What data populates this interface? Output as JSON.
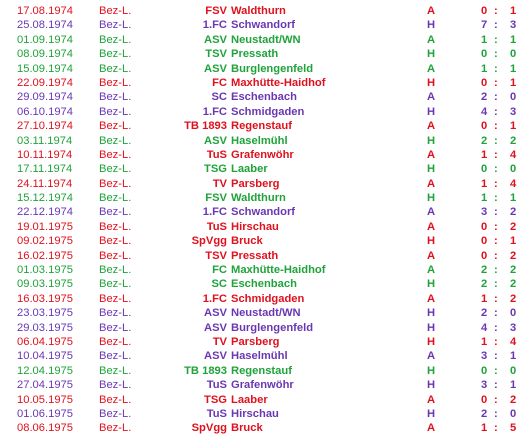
{
  "colors": {
    "win": "#1fa33a",
    "draw": "#6a37b3",
    "loss": "#e0111e"
  },
  "matches": [
    {
      "date": "17.08.1974",
      "league": "Bez-L.",
      "prefix": "FSV",
      "club": "Waldthurn",
      "venue": "A",
      "g1": "0",
      "g2": "1",
      "result": "loss"
    },
    {
      "date": "25.08.1974",
      "league": "Bez-L.",
      "prefix": "1.FC",
      "club": "Schwandorf",
      "venue": "H",
      "g1": "7",
      "g2": "3",
      "result": "draw"
    },
    {
      "date": "01.09.1974",
      "league": "Bez-L.",
      "prefix": "ASV",
      "club": "Neustadt/WN",
      "venue": "A",
      "g1": "1",
      "g2": "1",
      "result": "win"
    },
    {
      "date": "08.09.1974",
      "league": "Bez-L.",
      "prefix": "TSV",
      "club": "Pressath",
      "venue": "H",
      "g1": "0",
      "g2": "0",
      "result": "win"
    },
    {
      "date": "15.09.1974",
      "league": "Bez-L.",
      "prefix": "ASV",
      "club": "Burglengenfeld",
      "venue": "A",
      "g1": "1",
      "g2": "1",
      "result": "win"
    },
    {
      "date": "22.09.1974",
      "league": "Bez-L.",
      "prefix": "FC",
      "club": "Maxhütte-Haidhof",
      "venue": "H",
      "g1": "0",
      "g2": "1",
      "result": "loss"
    },
    {
      "date": "29.09.1974",
      "league": "Bez-L.",
      "prefix": "SC",
      "club": "Eschenbach",
      "venue": "A",
      "g1": "2",
      "g2": "0",
      "result": "draw"
    },
    {
      "date": "06.10.1974",
      "league": "Bez-L.",
      "prefix": "1.FC",
      "club": "Schmidgaden",
      "venue": "H",
      "g1": "4",
      "g2": "3",
      "result": "draw"
    },
    {
      "date": "27.10.1974",
      "league": "Bez-L.",
      "prefix": "TB 1893",
      "club": "Regenstauf",
      "venue": "A",
      "g1": "0",
      "g2": "1",
      "result": "loss"
    },
    {
      "date": "03.11.1974",
      "league": "Bez-L.",
      "prefix": "ASV",
      "club": "Haselmühl",
      "venue": "H",
      "g1": "2",
      "g2": "2",
      "result": "win"
    },
    {
      "date": "10.11.1974",
      "league": "Bez-L.",
      "prefix": "TuS",
      "club": "Grafenwöhr",
      "venue": "A",
      "g1": "1",
      "g2": "4",
      "result": "loss"
    },
    {
      "date": "17.11.1974",
      "league": "Bez-L.",
      "prefix": "TSG",
      "club": "Laaber",
      "venue": "H",
      "g1": "0",
      "g2": "0",
      "result": "win"
    },
    {
      "date": "24.11.1974",
      "league": "Bez-L.",
      "prefix": "TV",
      "club": "Parsberg",
      "venue": "A",
      "g1": "1",
      "g2": "4",
      "result": "loss"
    },
    {
      "date": "15.12.1974",
      "league": "Bez-L.",
      "prefix": "FSV",
      "club": "Waldthurn",
      "venue": "H",
      "g1": "1",
      "g2": "1",
      "result": "win"
    },
    {
      "date": "22.12.1974",
      "league": "Bez-L.",
      "prefix": "1.FC",
      "club": "Schwandorf",
      "venue": "A",
      "g1": "3",
      "g2": "2",
      "result": "draw"
    },
    {
      "date": "19.01.1975",
      "league": "Bez-L.",
      "prefix": "TuS",
      "club": "Hirschau",
      "venue": "A",
      "g1": "0",
      "g2": "2",
      "result": "loss"
    },
    {
      "date": "09.02.1975",
      "league": "Bez-L.",
      "prefix": "SpVgg",
      "club": "Bruck",
      "venue": "H",
      "g1": "0",
      "g2": "1",
      "result": "loss"
    },
    {
      "date": "16.02.1975",
      "league": "Bez-L.",
      "prefix": "TSV",
      "club": "Pressath",
      "venue": "A",
      "g1": "0",
      "g2": "2",
      "result": "loss"
    },
    {
      "date": "01.03.1975",
      "league": "Bez-L.",
      "prefix": "FC",
      "club": "Maxhütte-Haidhof",
      "venue": "A",
      "g1": "2",
      "g2": "2",
      "result": "win"
    },
    {
      "date": "09.03.1975",
      "league": "Bez-L.",
      "prefix": "SC",
      "club": "Eschenbach",
      "venue": "H",
      "g1": "2",
      "g2": "2",
      "result": "win"
    },
    {
      "date": "16.03.1975",
      "league": "Bez-L.",
      "prefix": "1.FC",
      "club": "Schmidgaden",
      "venue": "A",
      "g1": "1",
      "g2": "2",
      "result": "loss"
    },
    {
      "date": "23.03.1975",
      "league": "Bez-L.",
      "prefix": "ASV",
      "club": "Neustadt/WN",
      "venue": "H",
      "g1": "2",
      "g2": "0",
      "result": "draw"
    },
    {
      "date": "29.03.1975",
      "league": "Bez-L.",
      "prefix": "ASV",
      "club": "Burglengenfeld",
      "venue": "H",
      "g1": "4",
      "g2": "3",
      "result": "draw"
    },
    {
      "date": "06.04.1975",
      "league": "Bez-L.",
      "prefix": "TV",
      "club": "Parsberg",
      "venue": "H",
      "g1": "1",
      "g2": "4",
      "result": "loss"
    },
    {
      "date": "10.04.1975",
      "league": "Bez-L.",
      "prefix": "ASV",
      "club": "Haselmühl",
      "venue": "A",
      "g1": "3",
      "g2": "1",
      "result": "draw"
    },
    {
      "date": "12.04.1975",
      "league": "Bez-L.",
      "prefix": "TB 1893",
      "club": "Regenstauf",
      "venue": "H",
      "g1": "0",
      "g2": "0",
      "result": "win"
    },
    {
      "date": "27.04.1975",
      "league": "Bez-L.",
      "prefix": "TuS",
      "club": "Grafenwöhr",
      "venue": "H",
      "g1": "3",
      "g2": "1",
      "result": "draw"
    },
    {
      "date": "10.05.1975",
      "league": "Bez-L.",
      "prefix": "TSG",
      "club": "Laaber",
      "venue": "A",
      "g1": "0",
      "g2": "2",
      "result": "loss"
    },
    {
      "date": "01.06.1975",
      "league": "Bez-L.",
      "prefix": "TuS",
      "club": "Hirschau",
      "venue": "H",
      "g1": "2",
      "g2": "0",
      "result": "draw"
    },
    {
      "date": "08.06.1975",
      "league": "Bez-L.",
      "prefix": "SpVgg",
      "club": "Bruck",
      "venue": "A",
      "g1": "1",
      "g2": "5",
      "result": "loss"
    }
  ]
}
